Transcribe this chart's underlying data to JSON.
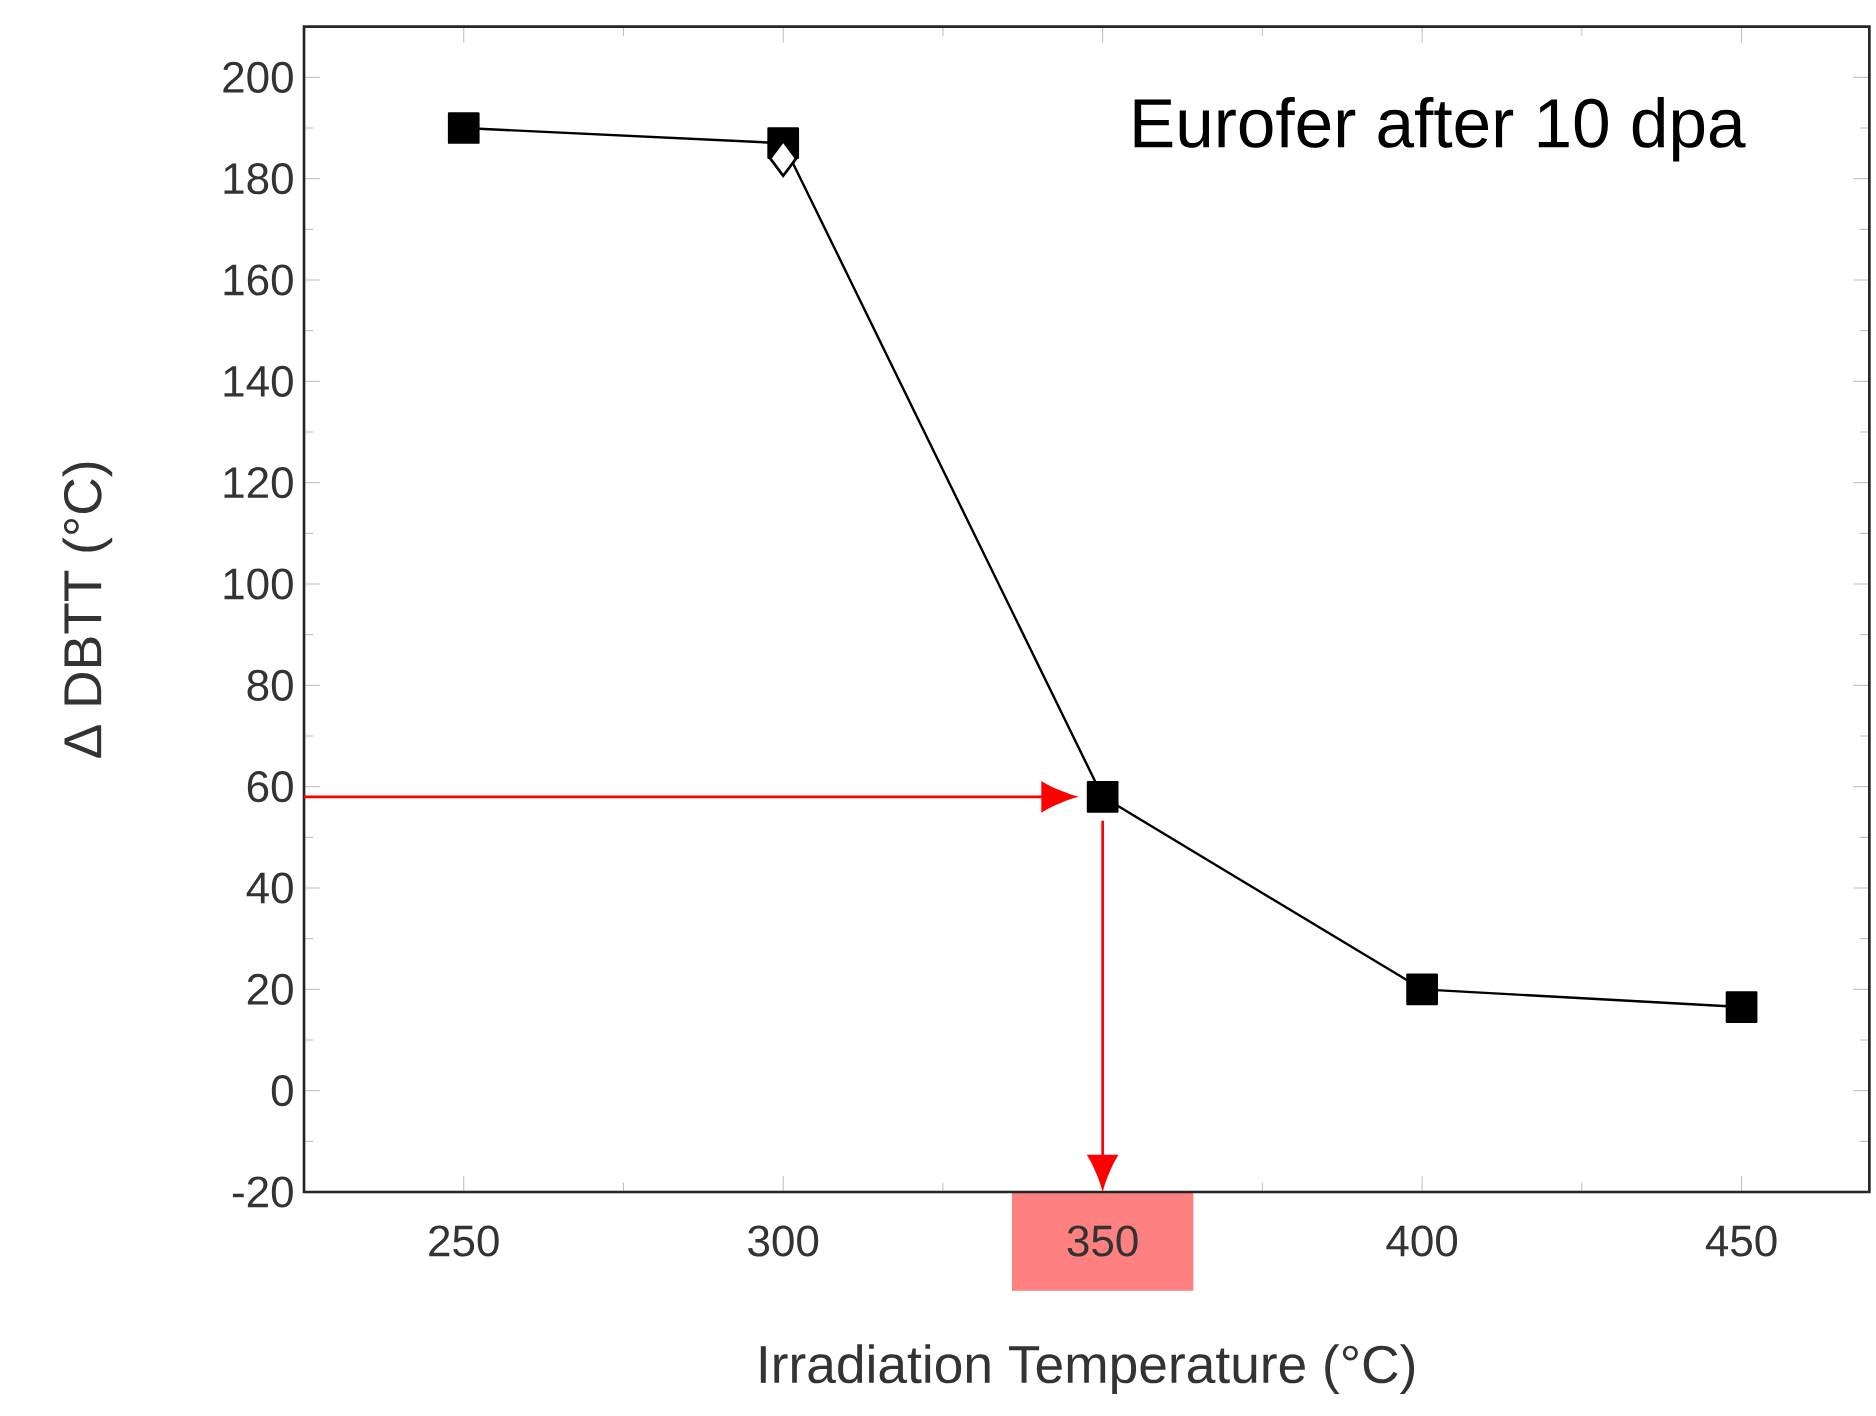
{
  "chart_data": {
    "type": "line",
    "xlabel": "Irradiation Temperature (°C)",
    "ylabel": "Δ DBTT (°C)",
    "annotations": [
      "Eurofer after 10 dpa"
    ],
    "xlim": [
      225,
      470
    ],
    "xticks": [
      250,
      300,
      350,
      400,
      450
    ],
    "ylim": [
      -20,
      210
    ],
    "yticks": [
      -20,
      0,
      20,
      40,
      60,
      80,
      100,
      120,
      140,
      160,
      180,
      200
    ],
    "series": [
      {
        "x": [
          250,
          300,
          350,
          400,
          450
        ],
        "values": [
          190,
          187,
          58,
          20,
          16.5
        ],
        "color": "#000000",
        "marker": "square"
      },
      {
        "type": "scatter",
        "x": [
          300
        ],
        "values": [
          184
        ],
        "color": "#000000",
        "marker": "diamond"
      }
    ],
    "grid": false
  }
}
